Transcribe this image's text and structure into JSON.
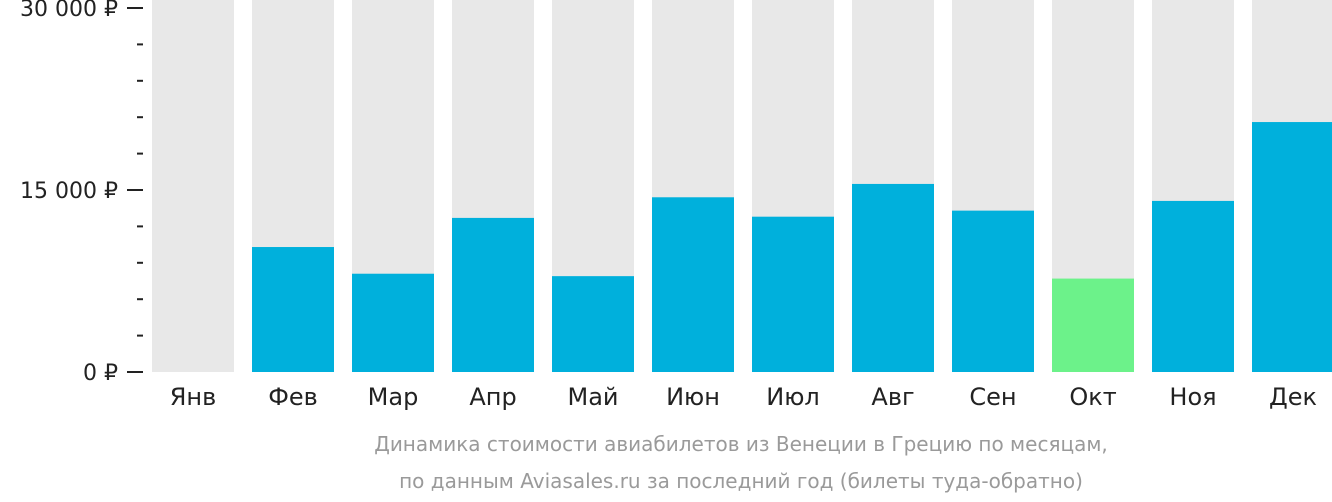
{
  "chart_data": {
    "type": "bar",
    "categories": [
      "Янв",
      "Фев",
      "Мар",
      "Апр",
      "Май",
      "Июн",
      "Июл",
      "Авг",
      "Сен",
      "Окт",
      "Ноя",
      "Дек"
    ],
    "values": [
      null,
      10300,
      8100,
      12700,
      7900,
      14400,
      12800,
      15500,
      13300,
      7700,
      14100,
      20600
    ],
    "ylim": [
      0,
      30000
    ],
    "yticks": [
      {
        "value": 30000,
        "label": "30 000 ₽"
      },
      {
        "value": 15000,
        "label": "15 000 ₽"
      },
      {
        "value": 0,
        "label": "0 ₽"
      }
    ],
    "minor_tick_step": 3000,
    "grid": false,
    "colors": {
      "bar": "#00b0dc",
      "highlight": "#6cf28a",
      "background_bar": "#e8e8e8",
      "axis": "#222222"
    },
    "highlight_index": 9,
    "caption": [
      "Динамика стоимости авиабилетов из Венеции в Грецию по месяцам,",
      "по данным Aviasales.ru за последний год (билеты туда-обратно)"
    ]
  }
}
